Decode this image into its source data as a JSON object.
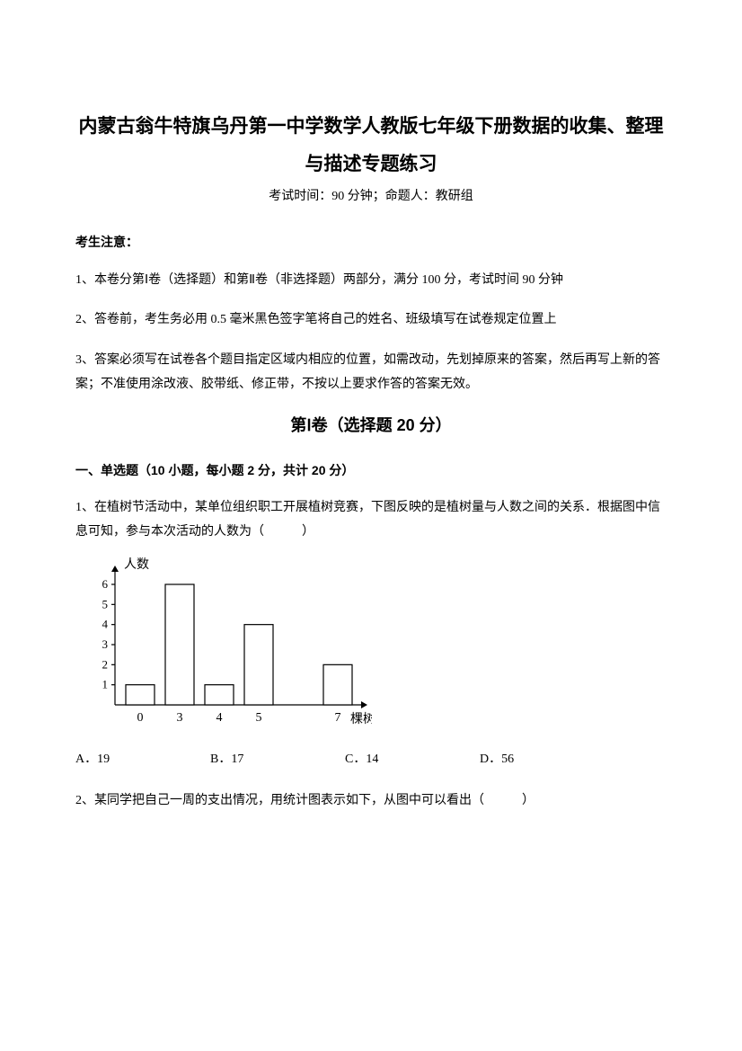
{
  "title": "内蒙古翁牛特旗乌丹第一中学数学人教版七年级下册数据的收集、整理与描述专题练习",
  "subtitle": "考试时间：90 分钟；命题人：教研组",
  "notice_heading": "考生注意：",
  "notices": [
    "1、本卷分第Ⅰ卷（选择题）和第Ⅱ卷（非选择题）两部分，满分 100 分，考试时间 90 分钟",
    "2、答卷前，考生务必用 0.5 毫米黑色签字笔将自己的姓名、班级填写在试卷规定位置上",
    "3、答案必须写在试卷各个题目指定区域内相应的位置，如需改动，先划掉原来的答案，然后再写上新的答案；不准使用涂改液、胶带纸、修正带，不按以上要求作答的答案无效。"
  ],
  "section1_heading": "第Ⅰ卷（选择题  20 分）",
  "subsection_heading": "一、单选题（10 小题，每小题 2 分，共计 20 分）",
  "q1": {
    "text": "1、在植树节活动中，某单位组织职工开展植树竞赛，下图反映的是植树量与人数之间的关系．根据图中信息可知，参与本次活动的人数为（　　　）",
    "chart": {
      "type": "bar",
      "x_label": "棵树",
      "y_label": "人数",
      "categories": [
        "0",
        "3",
        "4",
        "5",
        "7"
      ],
      "values": [
        1,
        6,
        1,
        4,
        2
      ],
      "x_positions": [
        0,
        1,
        2,
        3,
        5
      ],
      "y_ticks": [
        1,
        2,
        3,
        4,
        5,
        6
      ],
      "axis_color": "#000000",
      "bar_fill": "#ffffff",
      "bar_stroke": "#000000",
      "font_size_pt": 11,
      "stroke_width": 1.2,
      "arrow_size": 7
    },
    "options": {
      "A": "A．19",
      "B": "B．17",
      "C": "C．14",
      "D": "D．56"
    }
  },
  "q2": {
    "text": "2、某同学把自己一周的支出情况，用统计图表示如下，从图中可以看出（　　　）"
  }
}
